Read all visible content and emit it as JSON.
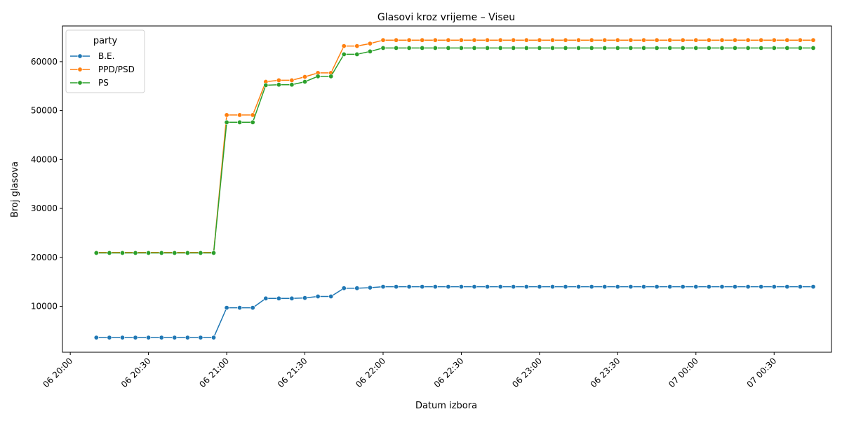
{
  "chart_data": {
    "type": "line",
    "title": "Glasovi kroz vrijeme – Viseu",
    "xlabel": "Datum izbora",
    "ylabel": "Broj glasova",
    "x_ticks": [
      "06 20:00",
      "06 20:30",
      "06 21:00",
      "06 21:30",
      "06 22:00",
      "06 22:30",
      "06 23:00",
      "06 23:30",
      "07 00:00",
      "07 00:30"
    ],
    "y_ticks": [
      "10000",
      "20000",
      "30000",
      "40000",
      "50000",
      "60000"
    ],
    "y_tick_values": [
      10000,
      20000,
      30000,
      40000,
      50000,
      60000
    ],
    "x_range_minutes": [
      -3,
      292
    ],
    "y_range": [
      600,
      67300
    ],
    "grid": false,
    "legend": {
      "title": "party",
      "position": "top-left"
    },
    "x_minutes": [
      10,
      15,
      20,
      25,
      30,
      35,
      40,
      45,
      50,
      55,
      60,
      65,
      70,
      75,
      80,
      85,
      90,
      95,
      100,
      105,
      110,
      115,
      120,
      125,
      130,
      135,
      140,
      145,
      150,
      155,
      160,
      165,
      170,
      175,
      180,
      185,
      190,
      195,
      200,
      205,
      210,
      215,
      220,
      225,
      230,
      235,
      240,
      245,
      250,
      255,
      260,
      265,
      270,
      275,
      280,
      285
    ],
    "series": [
      {
        "name": "B.E.",
        "color": "#1f77b4",
        "values": [
          3600,
          3600,
          3600,
          3600,
          3600,
          3600,
          3600,
          3600,
          3600,
          3600,
          9700,
          9700,
          9700,
          11600,
          11600,
          11600,
          11700,
          12000,
          12000,
          13700,
          13700,
          13800,
          14000,
          14000,
          14000,
          14000,
          14000,
          14000,
          14000,
          14000,
          14000,
          14000,
          14000,
          14000,
          14000,
          14000,
          14000,
          14000,
          14000,
          14000,
          14000,
          14000,
          14000,
          14000,
          14000,
          14000,
          14000,
          14000,
          14000,
          14000,
          14000,
          14000,
          14000,
          14000,
          14000,
          14000
        ]
      },
      {
        "name": "PPD/PSD",
        "color": "#ff7f0e",
        "values": [
          21000,
          21000,
          21000,
          21000,
          21000,
          21000,
          21000,
          21000,
          21000,
          21000,
          49100,
          49100,
          49100,
          55900,
          56200,
          56200,
          56900,
          57700,
          57700,
          63200,
          63200,
          63700,
          64400,
          64400,
          64400,
          64400,
          64400,
          64400,
          64400,
          64400,
          64400,
          64400,
          64400,
          64400,
          64400,
          64400,
          64400,
          64400,
          64400,
          64400,
          64400,
          64400,
          64400,
          64400,
          64400,
          64400,
          64400,
          64400,
          64400,
          64400,
          64400,
          64400,
          64400,
          64400,
          64400,
          64400
        ]
      },
      {
        "name": "PS",
        "color": "#2ca02c",
        "values": [
          20900,
          20900,
          20900,
          20900,
          20900,
          20900,
          20900,
          20900,
          20900,
          20900,
          47600,
          47600,
          47600,
          55200,
          55300,
          55300,
          55900,
          57000,
          57000,
          61500,
          61500,
          62100,
          62800,
          62800,
          62800,
          62800,
          62800,
          62800,
          62800,
          62800,
          62800,
          62800,
          62800,
          62800,
          62800,
          62800,
          62800,
          62800,
          62800,
          62800,
          62800,
          62800,
          62800,
          62800,
          62800,
          62800,
          62800,
          62800,
          62800,
          62800,
          62800,
          62800,
          62800,
          62800,
          62800,
          62800
        ]
      }
    ]
  }
}
